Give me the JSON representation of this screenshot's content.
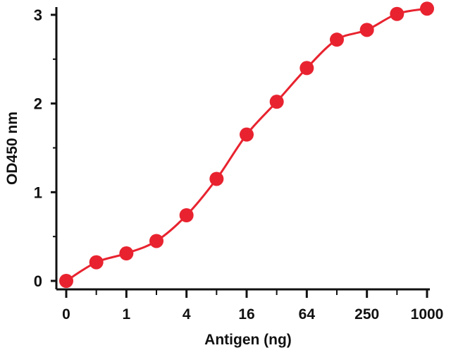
{
  "chart_data": {
    "type": "scatter",
    "title": "",
    "xlabel": "Antigen (ng)",
    "ylabel": "OD450 nm",
    "x_tick_labels": [
      "0",
      "1",
      "4",
      "16",
      "64",
      "250",
      "1000"
    ],
    "y_ticks": [
      0,
      1,
      2,
      3
    ],
    "ylim": [
      0,
      3
    ],
    "grid": false,
    "legend": "none",
    "series": [
      {
        "color": "#e8232f",
        "fit_curve": true,
        "points": [
          {
            "x": 0,
            "y": 0.0
          },
          {
            "x": 0.49,
            "y": 0.21
          },
          {
            "x": 0.98,
            "y": 0.31
          },
          {
            "x": 1.95,
            "y": 0.45
          },
          {
            "x": 3.91,
            "y": 0.74
          },
          {
            "x": 7.81,
            "y": 1.15
          },
          {
            "x": 15.6,
            "y": 1.65
          },
          {
            "x": 31.3,
            "y": 2.02
          },
          {
            "x": 62.5,
            "y": 2.4
          },
          {
            "x": 125,
            "y": 2.72
          },
          {
            "x": 250,
            "y": 2.83
          },
          {
            "x": 500,
            "y": 3.01
          },
          {
            "x": 1000,
            "y": 3.07
          }
        ]
      }
    ]
  }
}
